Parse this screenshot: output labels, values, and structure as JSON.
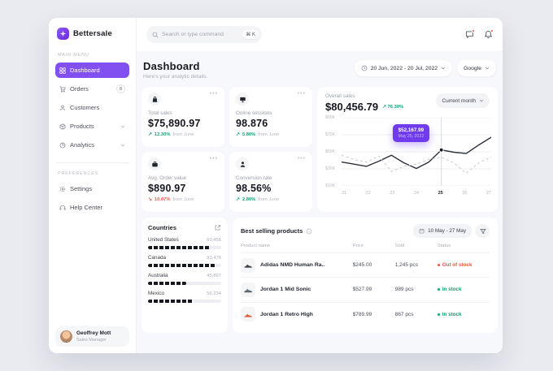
{
  "accent_color": "#8250f0",
  "brand": "Bettersale",
  "topbar": {
    "search_placeholder": "Search or type command",
    "shortcut": "⌘ K"
  },
  "sidebar": {
    "main_menu_label": "MAIN MENU",
    "items": [
      {
        "label": "Dashboard",
        "active": true
      },
      {
        "label": "Orders",
        "badge": "8"
      },
      {
        "label": "Customers"
      },
      {
        "label": "Products"
      },
      {
        "label": "Analytics"
      }
    ],
    "preferences_label": "PREFERENCES",
    "preferences": [
      {
        "label": "Settings"
      },
      {
        "label": "Help Center"
      }
    ],
    "user": {
      "name": "Geoffrey Mott",
      "role": "Sales Manager"
    }
  },
  "header": {
    "title": "Dashboard",
    "subtitle": "Here's your analytic details.",
    "date_range": "20 Jun, 2022 - 20 Jul, 2022",
    "source": "Google"
  },
  "stats": [
    {
      "icon": "shopping-bag",
      "label": "Total sales",
      "value": "$75,890.97",
      "trend": "up",
      "delta": "12.30%",
      "delta_suffix": "from June"
    },
    {
      "icon": "monitor",
      "label": "Online sessions",
      "value": "98.876",
      "trend": "up",
      "delta": "5.80%",
      "delta_suffix": "from June"
    },
    {
      "icon": "briefcase",
      "label": "Avg. Order value",
      "value": "$890.97",
      "trend": "down",
      "delta": "10.07%",
      "delta_suffix": "from June"
    },
    {
      "icon": "user",
      "label": "Conversion rate",
      "value": "98.56%",
      "trend": "up",
      "delta": "2.80%",
      "delta_suffix": "from June"
    }
  ],
  "overall_sales": {
    "label": "Overall sales",
    "value": "$80,456.79",
    "delta": "76.30%",
    "period": "Current month",
    "tooltip": {
      "value": "$52,167.99",
      "date": "May 25, 2022"
    },
    "chart_data": {
      "type": "line",
      "x": [
        21,
        21.5,
        22,
        22.5,
        23,
        23.5,
        24,
        24.5,
        25,
        25.5,
        26,
        26.5,
        27
      ],
      "series": [
        {
          "name": "Current month",
          "style": "solid",
          "values": [
            38,
            35.5,
            33,
            39,
            46,
            37,
            30.5,
            38,
            52.2,
            49.5,
            48,
            58,
            67
          ]
        },
        {
          "name": "Previous month",
          "style": "dashed",
          "values": [
            46,
            41,
            38,
            45,
            27,
            33,
            35.5,
            41,
            43.5,
            37,
            25,
            37,
            44
          ]
        }
      ],
      "xticks": [
        "21",
        "22",
        "23",
        "24",
        "25",
        "26",
        "27"
      ],
      "highlight_xtick": "25",
      "highlight_point": {
        "x": 25,
        "y": 52.2
      },
      "yticks": [
        "$90K",
        "$70K",
        "$50K",
        "$30K",
        "$10K"
      ],
      "ytick_values": [
        90,
        70,
        50,
        30,
        10
      ],
      "ylim": [
        10,
        90
      ],
      "xlim": [
        21,
        27
      ]
    }
  },
  "countries": {
    "title": "Countries",
    "rows": [
      {
        "name": "United States",
        "value": "60,456",
        "bar_pct": 84
      },
      {
        "name": "Canada",
        "value": "93,478",
        "bar_pct": 92
      },
      {
        "name": "Australia",
        "value": "45,897",
        "bar_pct": 52
      },
      {
        "name": "Mexico",
        "value": "56,234",
        "bar_pct": 62
      }
    ]
  },
  "products": {
    "title": "Best selling products",
    "date_range": "10 May - 27 May",
    "columns": [
      "Product name",
      "Price",
      "Sold",
      "Status"
    ],
    "rows": [
      {
        "name": "Adidas NMD Human Ra..",
        "price": "$245.00",
        "sold": "1,245 pcs",
        "status": "Out of stock",
        "status_type": "red"
      },
      {
        "name": "Jordan 1 Mid Sonic",
        "price": "$527.99",
        "sold": "989 pcs",
        "status": "In stock",
        "status_type": "green"
      },
      {
        "name": "Jordan 1 Retro High",
        "price": "$789.99",
        "sold": "867 pcs",
        "status": "In stock",
        "status_type": "green"
      }
    ]
  }
}
